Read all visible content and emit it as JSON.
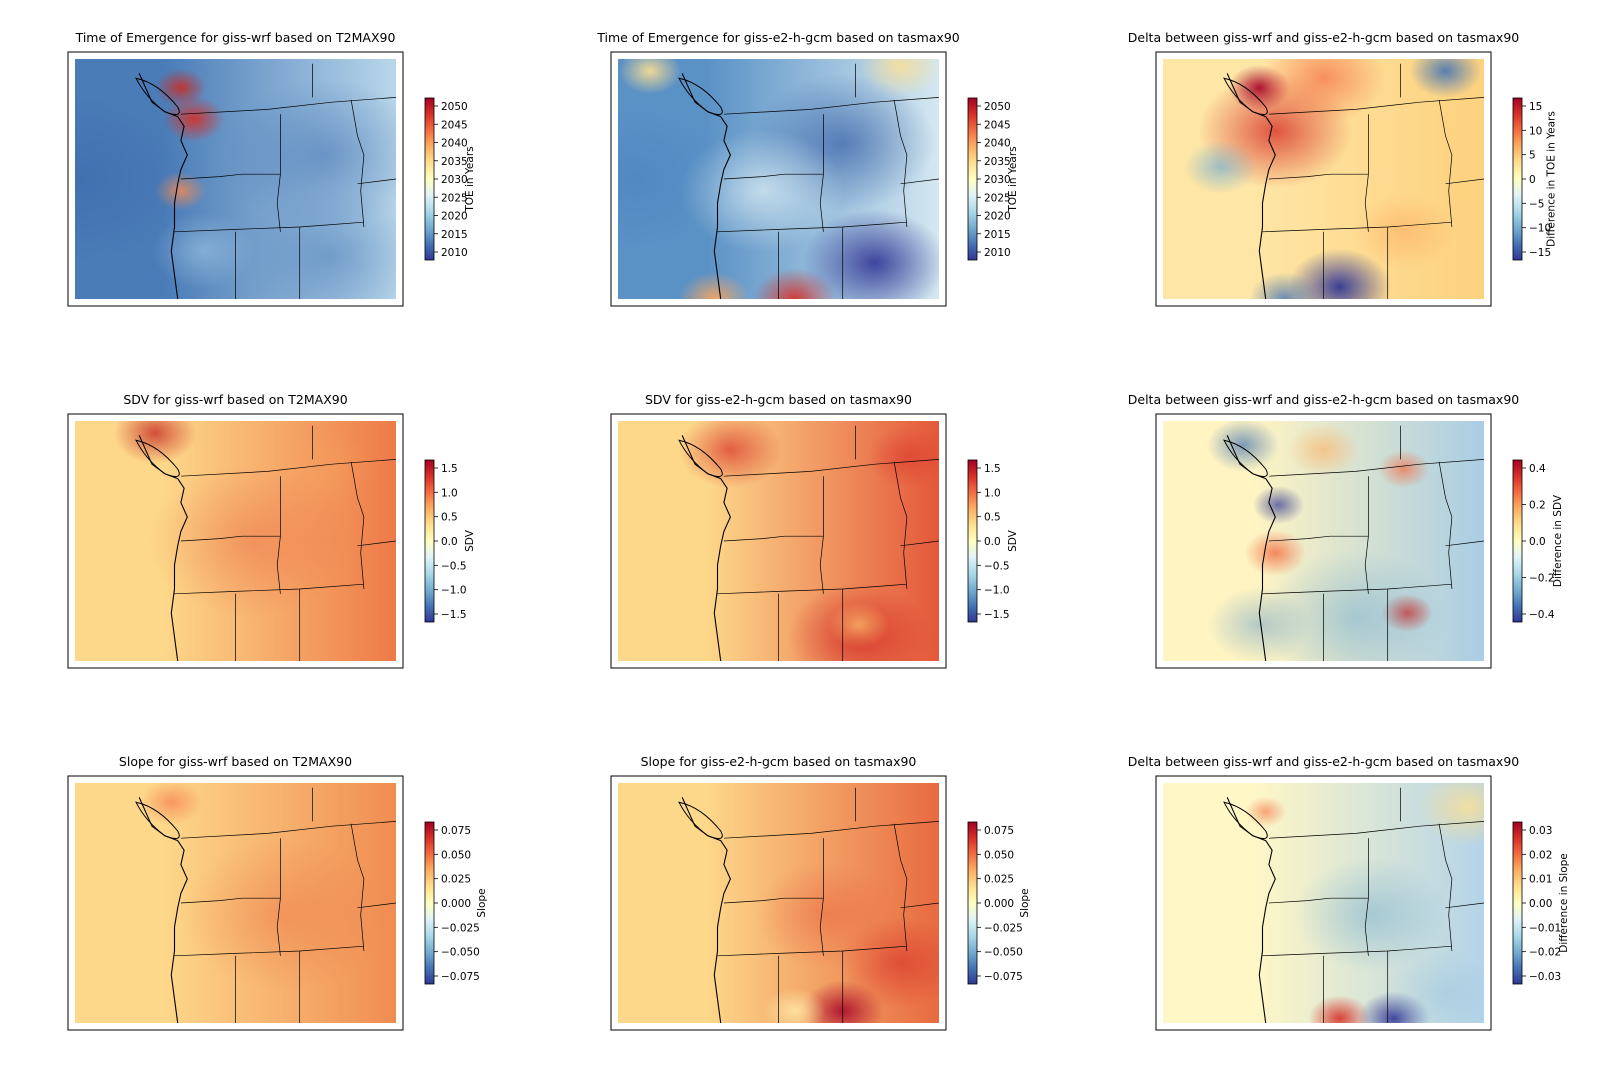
{
  "figure": {
    "panels": [
      {
        "id": "toe-wrf",
        "title": "Time of Emergence for giss-wrf based on T2MAX90",
        "cbar_label": "TOE in Years",
        "ticks": [
          "2050",
          "2045",
          "2040",
          "2035",
          "2030",
          "2025",
          "2020",
          "2015",
          "2010"
        ],
        "style": "wrf-toe"
      },
      {
        "id": "toe-gcm",
        "title": "Time of Emergence for giss-e2-h-gcm based on tasmax90",
        "cbar_label": "TOE in Years",
        "ticks": [
          "2050",
          "2045",
          "2040",
          "2035",
          "2030",
          "2025",
          "2020",
          "2015",
          "2010"
        ],
        "style": "gcm-toe"
      },
      {
        "id": "toe-delta",
        "title": "Delta between giss-wrf and giss-e2-h-gcm based on tasmax90",
        "cbar_label": "Difference in TOE in Years",
        "ticks": [
          "15",
          "10",
          "5",
          "0",
          "−5",
          "−10",
          "−15"
        ],
        "style": "delta-toe"
      },
      {
        "id": "sdv-wrf",
        "title": "SDV for giss-wrf based on T2MAX90",
        "cbar_label": "SDV",
        "ticks": [
          "1.5",
          "1.0",
          "0.5",
          "0.0",
          "−0.5",
          "−1.0",
          "−1.5"
        ],
        "style": "wrf-sdv"
      },
      {
        "id": "sdv-gcm",
        "title": "SDV for giss-e2-h-gcm based on tasmax90",
        "cbar_label": "SDV",
        "ticks": [
          "1.5",
          "1.0",
          "0.5",
          "0.0",
          "−0.5",
          "−1.0",
          "−1.5"
        ],
        "style": "gcm-sdv"
      },
      {
        "id": "sdv-delta",
        "title": "Delta between giss-wrf and giss-e2-h-gcm based on tasmax90",
        "cbar_label": "Difference in SDV",
        "ticks": [
          "0.4",
          "0.2",
          "0.0",
          "−0.2",
          "−0.4"
        ],
        "style": "delta-sdv"
      },
      {
        "id": "slope-wrf",
        "title": "Slope for giss-wrf based on T2MAX90",
        "cbar_label": "Slope",
        "ticks": [
          "0.075",
          "0.050",
          "0.025",
          "0.000",
          "−0.025",
          "−0.050",
          "−0.075"
        ],
        "style": "wrf-slope"
      },
      {
        "id": "slope-gcm",
        "title": "Slope for giss-e2-h-gcm based on tasmax90",
        "cbar_label": "Slope",
        "ticks": [
          "0.075",
          "0.050",
          "0.025",
          "0.000",
          "−0.025",
          "−0.050",
          "−0.075"
        ],
        "style": "gcm-slope"
      },
      {
        "id": "slope-delta",
        "title": "Delta between giss-wrf and giss-e2-h-gcm based on tasmax90",
        "cbar_label": "Difference in Slope",
        "ticks": [
          "0.03",
          "0.02",
          "0.01",
          "0.00",
          "−0.01",
          "−0.02",
          "−0.03"
        ],
        "style": "delta-slope"
      }
    ],
    "colormap": "RdYlBu_r",
    "colormap_stops": [
      "#313695",
      "#4575b4",
      "#74add1",
      "#abd9e9",
      "#e0f3f8",
      "#ffffbf",
      "#fee090",
      "#fdae61",
      "#f46d43",
      "#d73027",
      "#a50026"
    ]
  },
  "chart_data": [
    {
      "type": "heatmap",
      "title": "Time of Emergence for giss-wrf based on T2MAX90",
      "colorbar_label": "TOE in Years",
      "colorbar_range": [
        2010,
        2050
      ],
      "colorbar_ticks": [
        2010,
        2015,
        2020,
        2025,
        2030,
        2035,
        2040,
        2045,
        2050
      ]
    },
    {
      "type": "heatmap",
      "title": "Time of Emergence for giss-e2-h-gcm based on tasmax90",
      "colorbar_label": "TOE in Years",
      "colorbar_range": [
        2010,
        2050
      ],
      "colorbar_ticks": [
        2010,
        2015,
        2020,
        2025,
        2030,
        2035,
        2040,
        2045,
        2050
      ]
    },
    {
      "type": "heatmap",
      "title": "Delta between giss-wrf and giss-e2-h-gcm based on tasmax90",
      "colorbar_label": "Difference in TOE in Years",
      "colorbar_range": [
        -15,
        15
      ],
      "colorbar_ticks": [
        -15,
        -10,
        -5,
        0,
        5,
        10,
        15
      ]
    },
    {
      "type": "heatmap",
      "title": "SDV for giss-wrf based on T2MAX90",
      "colorbar_label": "SDV",
      "colorbar_range": [
        -1.7,
        1.7
      ],
      "colorbar_ticks": [
        -1.5,
        -1.0,
        -0.5,
        0.0,
        0.5,
        1.0,
        1.5
      ]
    },
    {
      "type": "heatmap",
      "title": "SDV for giss-e2-h-gcm based on tasmax90",
      "colorbar_label": "SDV",
      "colorbar_range": [
        -1.7,
        1.7
      ],
      "colorbar_ticks": [
        -1.5,
        -1.0,
        -0.5,
        0.0,
        0.5,
        1.0,
        1.5
      ]
    },
    {
      "type": "heatmap",
      "title": "Delta between giss-wrf and giss-e2-h-gcm based on tasmax90",
      "colorbar_label": "Difference in SDV",
      "colorbar_range": [
        -0.55,
        0.55
      ],
      "colorbar_ticks": [
        -0.4,
        -0.2,
        0.0,
        0.2,
        0.4
      ]
    },
    {
      "type": "heatmap",
      "title": "Slope for giss-wrf based on T2MAX90",
      "colorbar_label": "Slope",
      "colorbar_range": [
        -0.095,
        0.095
      ],
      "colorbar_ticks": [
        -0.075,
        -0.05,
        -0.025,
        0.0,
        0.025,
        0.05,
        0.075
      ]
    },
    {
      "type": "heatmap",
      "title": "Slope for giss-e2-h-gcm based on tasmax90",
      "colorbar_label": "Slope",
      "colorbar_range": [
        -0.095,
        0.095
      ],
      "colorbar_ticks": [
        -0.075,
        -0.05,
        -0.025,
        0.0,
        0.025,
        0.05,
        0.075
      ]
    },
    {
      "type": "heatmap",
      "title": "Delta between giss-wrf and giss-e2-h-gcm based on tasmax90",
      "colorbar_label": "Difference in Slope",
      "colorbar_range": [
        -0.035,
        0.035
      ],
      "colorbar_ticks": [
        -0.03,
        -0.02,
        -0.01,
        0.0,
        0.01,
        0.02,
        0.03
      ]
    }
  ]
}
